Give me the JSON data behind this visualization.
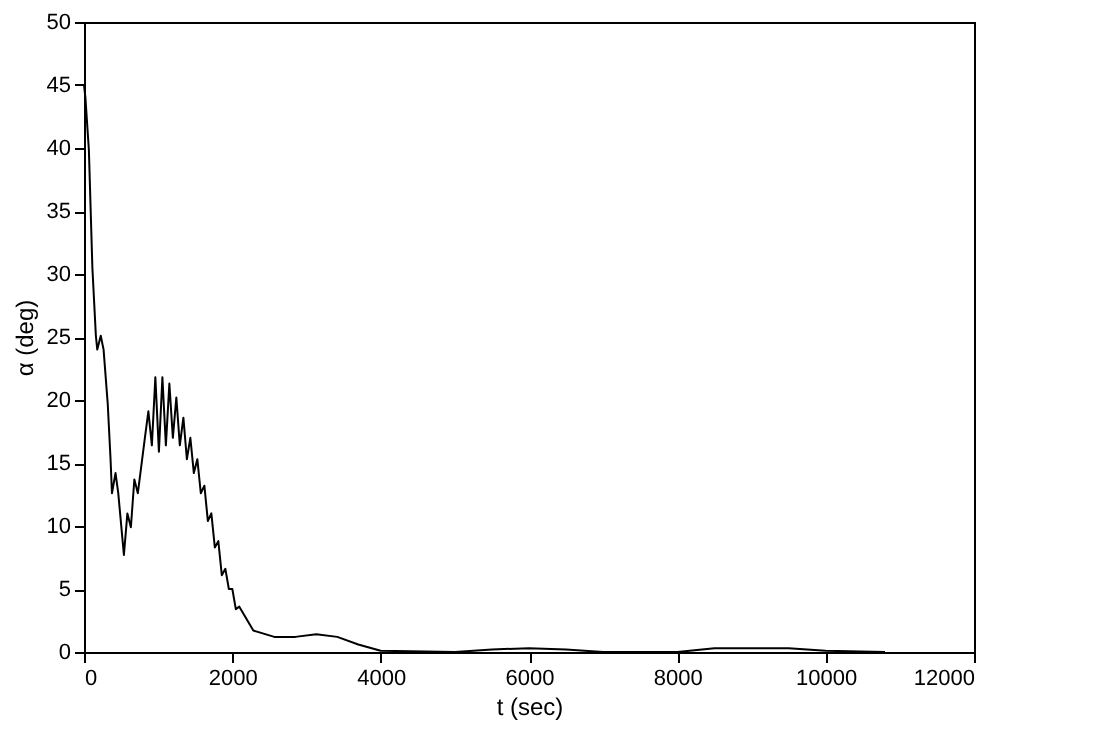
{
  "chart_data": {
    "type": "line",
    "xlabel": "t (sec)",
    "ylabel": "α (deg)",
    "xlim": [
      0,
      12000
    ],
    "xticks": [
      0,
      2000,
      4000,
      6000,
      8000,
      10000,
      12000
    ],
    "ylim": [
      0,
      50
    ],
    "yticks": [
      0,
      5,
      10,
      15,
      20,
      25,
      30,
      35,
      40,
      45,
      50
    ],
    "grid": false,
    "series": [
      {
        "color": "#000000",
        "x": [
          0,
          19,
          66,
          113,
          160,
          179,
          226,
          264,
          320,
          358,
          377,
          425,
          462,
          538,
          585,
          632,
          679,
          726,
          821,
          868,
          915,
          962,
          1010,
          1057,
          1104,
          1151,
          1198,
          1245,
          1292,
          1340,
          1387,
          1434,
          1481,
          1528,
          1575,
          1623,
          1670,
          1717,
          1764,
          1811,
          1858,
          1906,
          1953,
          2000,
          2047,
          2094,
          2283,
          2566,
          2849,
          3132,
          3415,
          3698,
          4000,
          5000,
          5500,
          6000,
          6500,
          7000,
          8000,
          8500,
          9000,
          9500,
          10000,
          10800
        ],
        "values": [
          45,
          44,
          39.8,
          30.5,
          25.1,
          24,
          25.1,
          24,
          19.7,
          15.3,
          12.6,
          14.2,
          12.6,
          7.7,
          11,
          9.9,
          13.7,
          12.6,
          17,
          19.1,
          16.4,
          21.8,
          15.9,
          21.8,
          16.4,
          21.3,
          17,
          20.2,
          16.4,
          18.6,
          15.3,
          17,
          14.2,
          15.3,
          12.6,
          13.2,
          10.4,
          11,
          8.3,
          8.8,
          6.1,
          6.6,
          5,
          5,
          3.4,
          3.6,
          1.7,
          1.2,
          1.2,
          1.4,
          1.2,
          0.6,
          0.1,
          0,
          0.2,
          0.3,
          0.2,
          0,
          0,
          0.3,
          0.3,
          0.3,
          0.1,
          0
        ]
      }
    ]
  }
}
